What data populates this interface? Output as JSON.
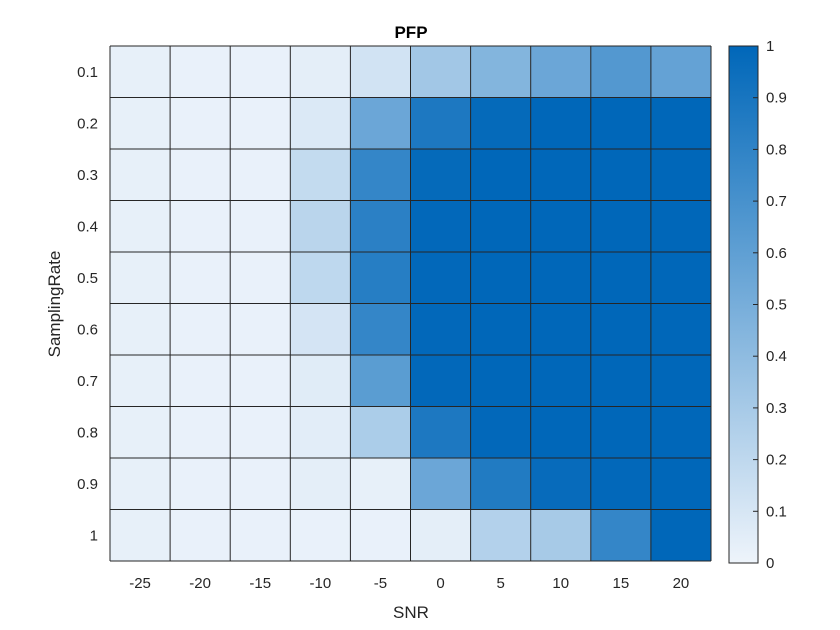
{
  "chart_data": {
    "type": "heatmap",
    "title": "PFP",
    "xlabel": "SNR",
    "ylabel": "SamplingRate",
    "x": [
      "-25",
      "-20",
      "-15",
      "-10",
      "-5",
      "0",
      "5",
      "10",
      "15",
      "20"
    ],
    "y": [
      "0.1",
      "0.2",
      "0.3",
      "0.4",
      "0.5",
      "0.6",
      "0.7",
      "0.8",
      "0.9",
      "1"
    ],
    "values": [
      [
        0.03,
        0.02,
        0.02,
        0.04,
        0.12,
        0.32,
        0.45,
        0.55,
        0.65,
        0.58
      ],
      [
        0.03,
        0.02,
        0.02,
        0.08,
        0.55,
        0.88,
        0.98,
        1.0,
        1.0,
        1.0
      ],
      [
        0.03,
        0.02,
        0.02,
        0.18,
        0.78,
        0.98,
        1.0,
        1.0,
        1.0,
        1.0
      ],
      [
        0.03,
        0.02,
        0.02,
        0.22,
        0.82,
        0.99,
        1.0,
        1.0,
        1.0,
        1.0
      ],
      [
        0.03,
        0.02,
        0.02,
        0.2,
        0.84,
        0.99,
        1.0,
        1.0,
        1.0,
        1.0
      ],
      [
        0.03,
        0.02,
        0.02,
        0.11,
        0.78,
        0.99,
        1.0,
        1.0,
        1.0,
        1.0
      ],
      [
        0.03,
        0.02,
        0.02,
        0.06,
        0.62,
        0.99,
        1.0,
        1.0,
        1.0,
        1.0
      ],
      [
        0.03,
        0.02,
        0.02,
        0.05,
        0.28,
        0.88,
        0.99,
        1.0,
        1.0,
        1.0
      ],
      [
        0.03,
        0.02,
        0.02,
        0.04,
        0.03,
        0.55,
        0.86,
        0.97,
        0.99,
        1.0
      ],
      [
        0.03,
        0.02,
        0.02,
        0.02,
        0.02,
        0.04,
        0.25,
        0.3,
        0.78,
        1.0
      ]
    ],
    "colorbar": {
      "range": [
        0,
        1
      ],
      "ticks": [
        "0",
        "0.1",
        "0.2",
        "0.3",
        "0.4",
        "0.5",
        "0.6",
        "0.7",
        "0.8",
        "0.9",
        "1"
      ],
      "color_low": "#eef4fb",
      "color_high": "#0067b9"
    },
    "grid": true,
    "grid_color": "#262626"
  }
}
